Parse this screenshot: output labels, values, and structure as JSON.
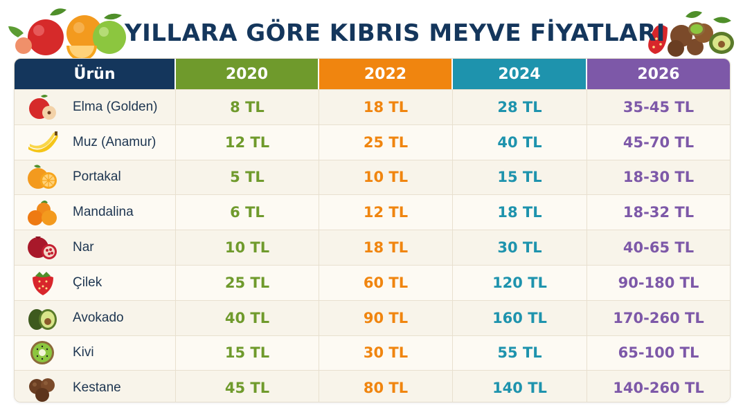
{
  "title": "YILLARA GÖRE KIBRIS MEYVE FİYATLARI",
  "colors": {
    "title": "#14365c",
    "h0": "#14365c",
    "y2020": "#6f9a2c",
    "y2022": "#f0850f",
    "y2024": "#1e93ad",
    "y2026": "#7d58a8"
  },
  "header": {
    "product": "Ürün",
    "y2020": "2020",
    "y2022": "2022",
    "y2024": "2024",
    "y2026": "2026"
  },
  "rows": [
    {
      "name": "Elma (Golden)",
      "icon": "apple-icon",
      "p2020": "8 TL",
      "p2022": "18 TL",
      "p2024": "28 TL",
      "p2026": "35-45 TL"
    },
    {
      "name": "Muz (Anamur)",
      "icon": "banana-icon",
      "p2020": "12 TL",
      "p2022": "25 TL",
      "p2024": "40 TL",
      "p2026": "45-70 TL"
    },
    {
      "name": "Portakal",
      "icon": "orange-icon",
      "p2020": "5 TL",
      "p2022": "10 TL",
      "p2024": "15 TL",
      "p2026": "18-30 TL"
    },
    {
      "name": "Mandalina",
      "icon": "tangerine-icon",
      "p2020": "6 TL",
      "p2022": "12 TL",
      "p2024": "18 TL",
      "p2026": "18-32 TL"
    },
    {
      "name": "Nar",
      "icon": "pomegranate-icon",
      "p2020": "10 TL",
      "p2022": "18 TL",
      "p2024": "30 TL",
      "p2026": "40-65 TL"
    },
    {
      "name": "Çilek",
      "icon": "strawberry-icon",
      "p2020": "25 TL",
      "p2022": "60 TL",
      "p2024": "120 TL",
      "p2026": "90-180 TL"
    },
    {
      "name": "Avokado",
      "icon": "avocado-icon",
      "p2020": "40 TL",
      "p2022": "90 TL",
      "p2024": "160 TL",
      "p2026": "170-260 TL"
    },
    {
      "name": "Kivi",
      "icon": "kiwi-icon",
      "p2020": "15 TL",
      "p2022": "30 TL",
      "p2024": "55 TL",
      "p2026": "65-100 TL"
    },
    {
      "name": "Kestane",
      "icon": "chestnut-icon",
      "p2020": "45 TL",
      "p2022": "80 TL",
      "p2024": "140 TL",
      "p2026": "140-260 TL"
    }
  ]
}
